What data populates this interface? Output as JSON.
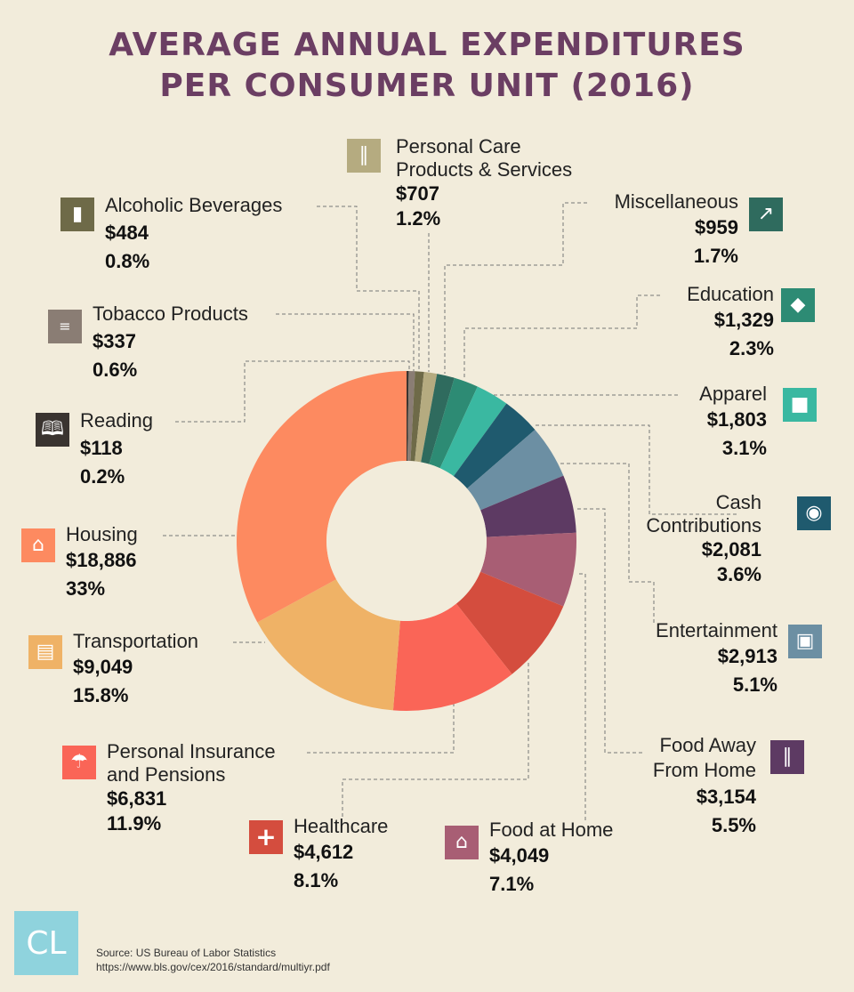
{
  "title": {
    "line1": "AVERAGE ANNUAL EXPENDITURES",
    "line2": "PER CONSUMER UNIT (2016)"
  },
  "chart_data": {
    "type": "pie",
    "title": "AVERAGE ANNUAL EXPENDITURES PER CONSUMER UNIT (2016)",
    "categories": [
      "Reading",
      "Tobacco Products",
      "Alcoholic Beverages",
      "Personal Care Products & Services",
      "Miscellaneous",
      "Education",
      "Apparel",
      "Cash Contributions",
      "Entertainment",
      "Food Away From Home",
      "Food at Home",
      "Healthcare",
      "Personal Insurance and Pensions",
      "Transportation",
      "Housing"
    ],
    "values": [
      118,
      337,
      484,
      707,
      959,
      1329,
      1803,
      2081,
      2913,
      3154,
      4049,
      4612,
      6831,
      9049,
      18886
    ],
    "percents": [
      0.2,
      0.6,
      0.8,
      1.2,
      1.7,
      2.3,
      3.1,
      3.6,
      5.1,
      5.5,
      7.1,
      8.1,
      11.9,
      15.8,
      33
    ],
    "colors": [
      "#3a3430",
      "#8a7d74",
      "#6e6a48",
      "#b5ab80",
      "#2f6b5e",
      "#2d8b74",
      "#3ab8a1",
      "#1f5a6e",
      "#6c8fa3",
      "#5d3a63",
      "#a85e74",
      "#d44d3e",
      "#fa6557",
      "#efb266",
      "#fd8a60"
    ]
  },
  "categories": {
    "reading": {
      "label": "Reading",
      "amount": "$118",
      "percent": "0.2%",
      "color": "#3a3430",
      "icon": "book-icon"
    },
    "tobacco": {
      "label": "Tobacco Products",
      "amount": "$337",
      "percent": "0.6%",
      "color": "#8a7d74",
      "icon": "cigarette-icon"
    },
    "alcohol": {
      "label": "Alcoholic Beverages",
      "amount": "$484",
      "percent": "0.8%",
      "color": "#6e6a48",
      "icon": "bottle-icon"
    },
    "personal_care": {
      "label1": "Personal Care",
      "label2": "Products & Services",
      "amount": "$707",
      "percent": "1.2%",
      "color": "#b5ab80",
      "icon": "toiletries-icon"
    },
    "misc": {
      "label": "Miscellaneous",
      "amount": "$959",
      "percent": "1.7%",
      "color": "#2f6b5e",
      "icon": "pushpin-icon"
    },
    "education": {
      "label": "Education",
      "amount": "$1,329",
      "percent": "2.3%",
      "color": "#2d8b74",
      "icon": "graduation-cap-icon"
    },
    "apparel": {
      "label": "Apparel",
      "amount": "$1,803",
      "percent": "3.1%",
      "color": "#3ab8a1",
      "icon": "tshirt-icon"
    },
    "cash": {
      "label1": "Cash",
      "label2": "Contributions",
      "amount": "$2,081",
      "percent": "3.6%",
      "color": "#1f5a6e",
      "icon": "cash-icon"
    },
    "entertainment": {
      "label": "Entertainment",
      "amount": "$2,913",
      "percent": "5.1%",
      "color": "#6c8fa3",
      "icon": "ticket-icon"
    },
    "food_away": {
      "label1": "Food Away",
      "label2": "From Home",
      "amount": "$3,154",
      "percent": "5.5%",
      "color": "#5d3a63",
      "icon": "fork-knife-icon"
    },
    "food_home": {
      "label": "Food at Home",
      "amount": "$4,049",
      "percent": "7.1%",
      "color": "#a85e74",
      "icon": "home-dining-icon"
    },
    "healthcare": {
      "label": "Healthcare",
      "amount": "$4,612",
      "percent": "8.1%",
      "color": "#d44d3e",
      "icon": "medical-cross-icon"
    },
    "insurance": {
      "label1": "Personal Insurance",
      "label2": "and Pensions",
      "amount": "$6,831",
      "percent": "11.9%",
      "color": "#fa6557",
      "icon": "umbrella-icon"
    },
    "transportation": {
      "label": "Transportation",
      "amount": "$9,049",
      "percent": "15.8%",
      "color": "#efb266",
      "icon": "bus-icon"
    },
    "housing": {
      "label": "Housing",
      "amount": "$18,886",
      "percent": "33%",
      "color": "#fd8a60",
      "icon": "house-icon"
    }
  },
  "footer": {
    "logo": "CL",
    "source": "Source: US Bureau of Labor Statistics",
    "url": "https://www.bls.gov/cex/2016/standard/multiyr.pdf"
  }
}
